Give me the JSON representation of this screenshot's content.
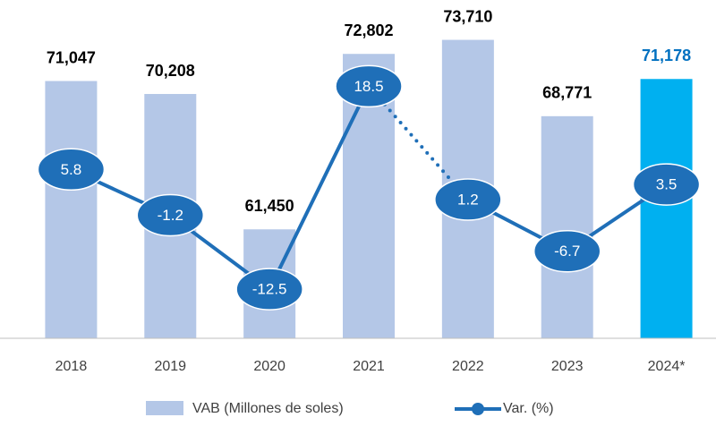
{
  "chart_data": {
    "type": "bar_line",
    "categories": [
      "2018",
      "2019",
      "2020",
      "2021",
      "2022",
      "2023",
      "2024*"
    ],
    "ylim": [
      54400,
      76000
    ],
    "y2lim": [
      -20,
      31
    ],
    "series": [
      {
        "name": "VAB (Millones de soles)",
        "type": "bar",
        "color": "#b4c7e7",
        "colors": [
          "#b4c7e7",
          "#b4c7e7",
          "#b4c7e7",
          "#b4c7e7",
          "#b4c7e7",
          "#b4c7e7",
          "#00b0f0"
        ],
        "values": [
          71047,
          70208,
          61450,
          72802,
          73710,
          68771,
          71178
        ],
        "value_labels": [
          "71,047",
          "70,208",
          "61,450",
          "72,802",
          "73,710",
          "68,771",
          "71,178"
        ],
        "value_label_colors": [
          "#000000",
          "#000000",
          "#000000",
          "#000000",
          "#000000",
          "#000000",
          "#0070c0"
        ]
      },
      {
        "name": "Var. (%)",
        "type": "line",
        "axis": "y2",
        "color": "#1f6fb8",
        "values": [
          5.8,
          -1.2,
          -12.5,
          18.5,
          1.2,
          -6.7,
          3.5
        ],
        "segment_styles": [
          "solid",
          "solid",
          "solid",
          "dotted",
          "solid",
          "solid"
        ]
      }
    ]
  }
}
